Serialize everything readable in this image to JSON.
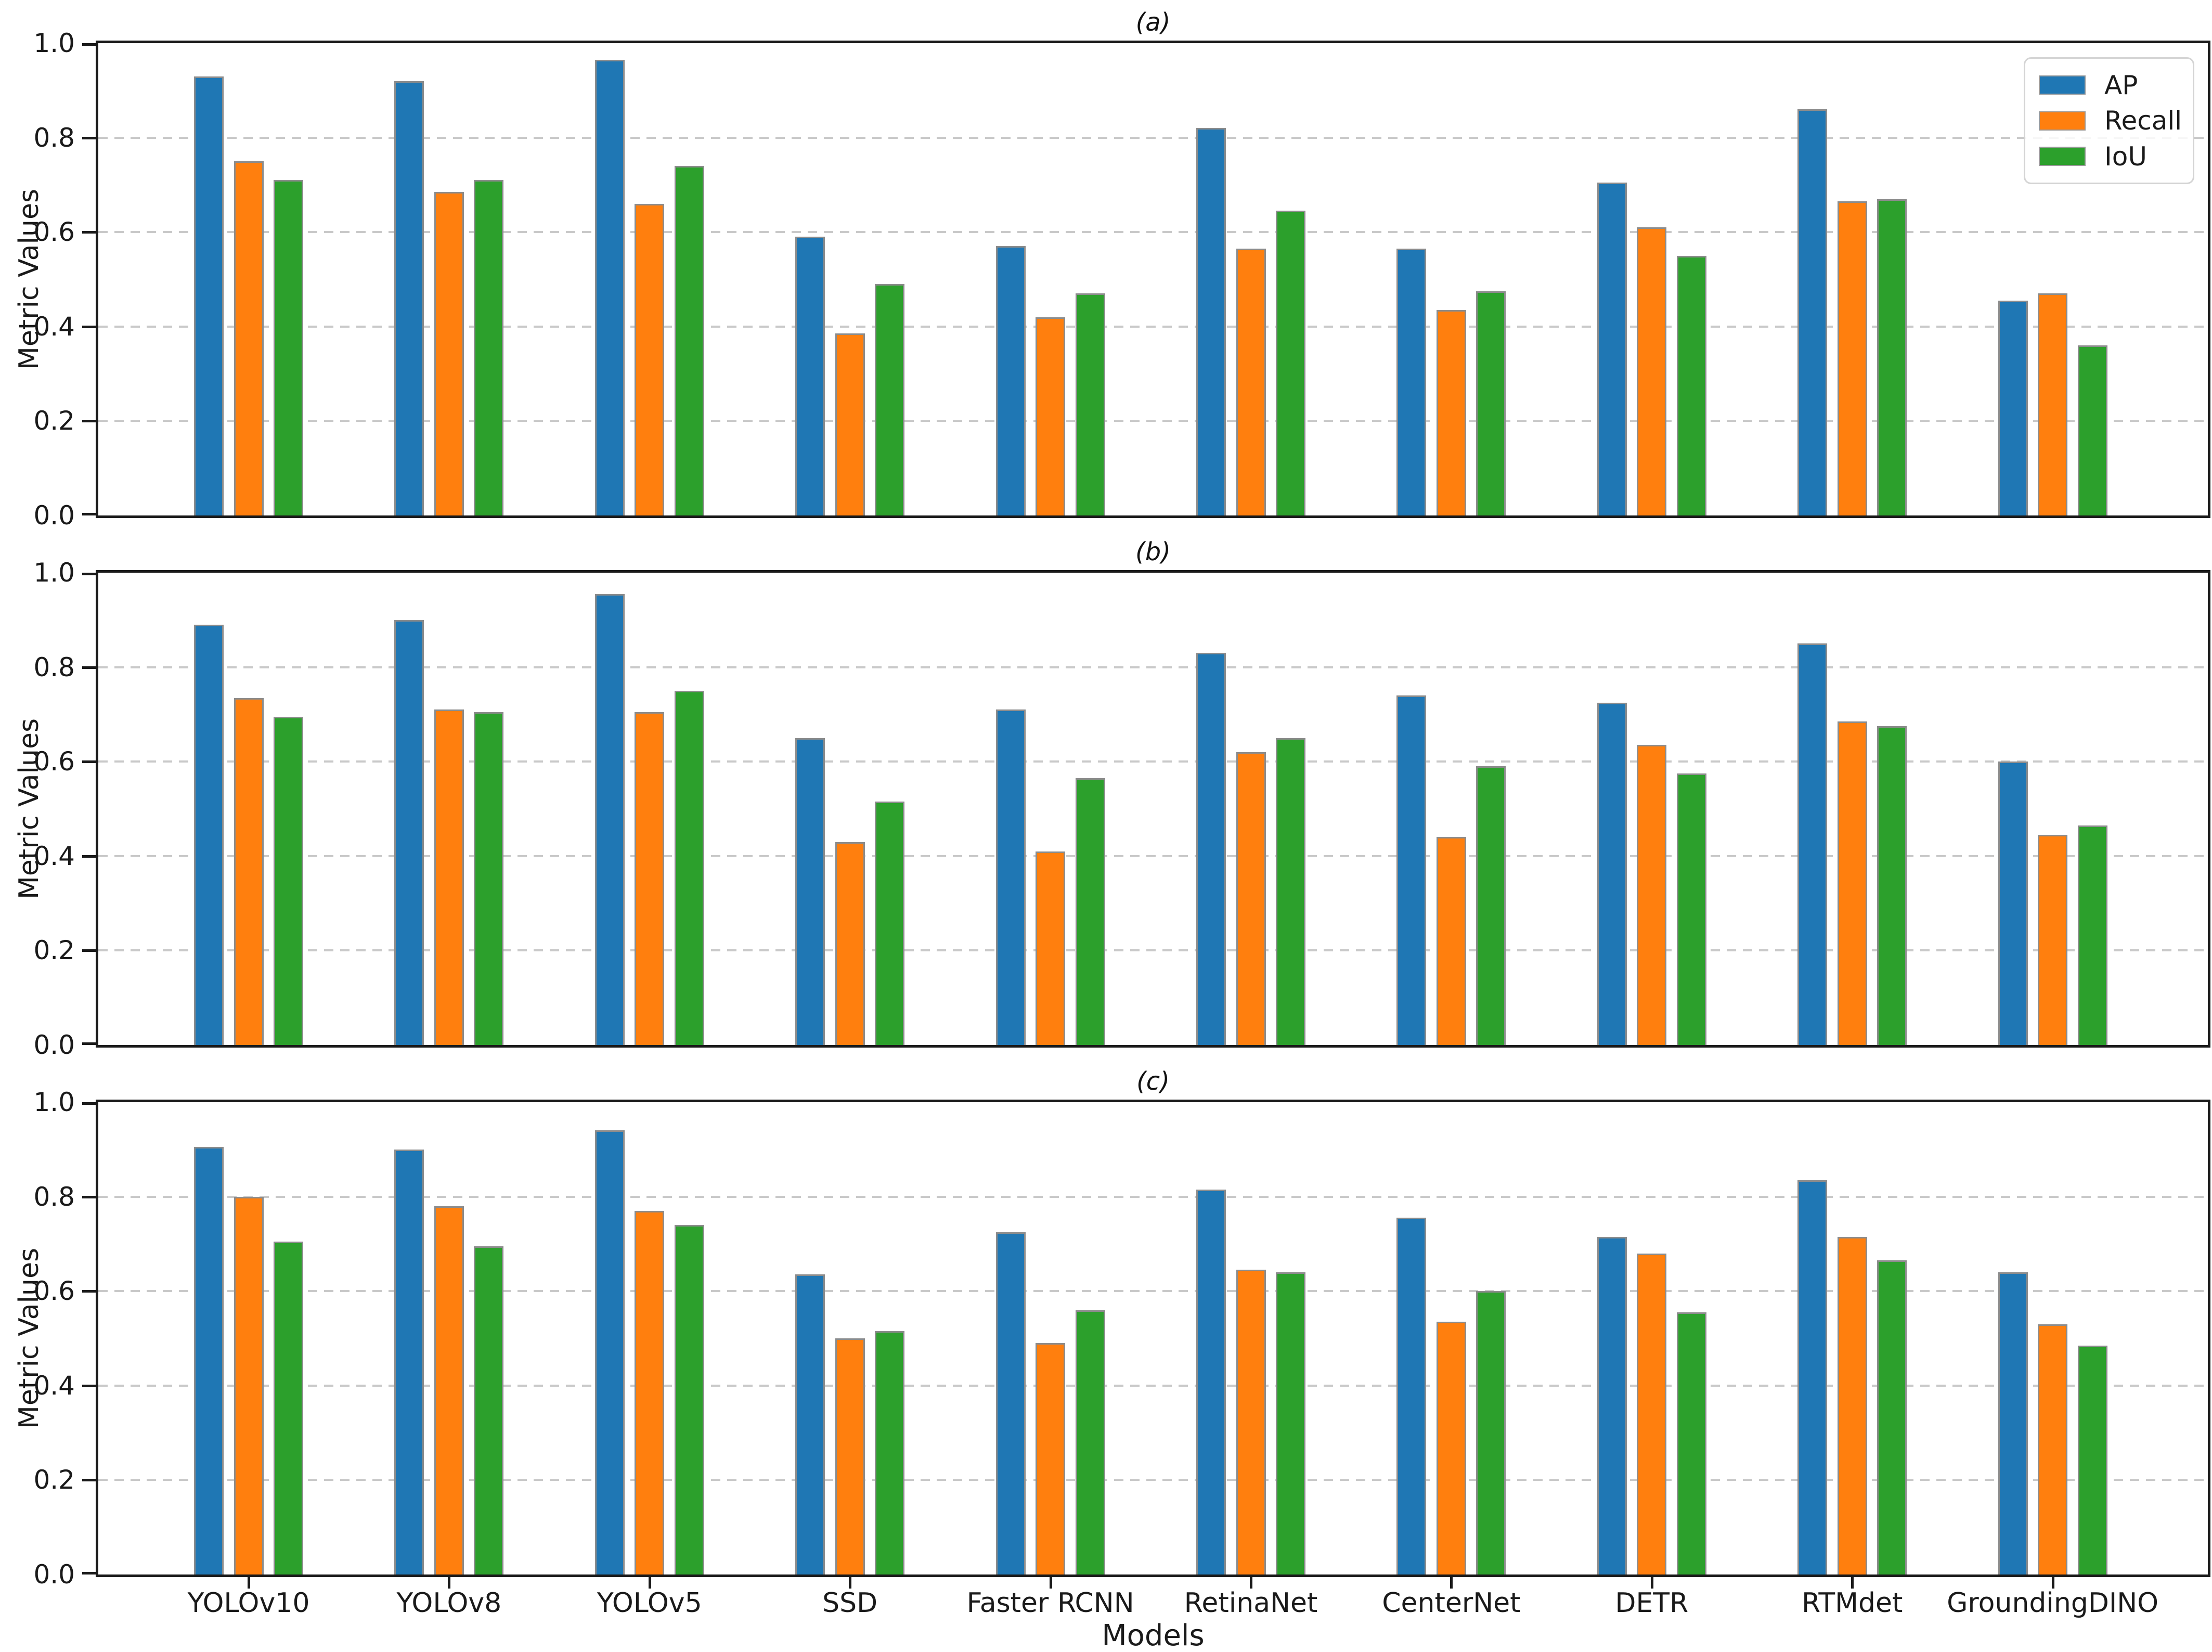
{
  "figure": {
    "xlabel": "Models",
    "ylabel": "Metric Values",
    "background": "#ffffff"
  },
  "axes": {
    "ytick_labels": [
      "1.0",
      "0.8",
      "0.6",
      "0.4",
      "0.2",
      "0.0"
    ],
    "ytick_values": [
      1.0,
      0.8,
      0.6,
      0.4,
      0.2,
      0.0
    ],
    "grid_values": [
      0.8,
      0.6,
      0.4,
      0.2
    ],
    "grid_color": "#c9c9c9",
    "spine_color": "#1a1a1a"
  },
  "legend": {
    "position": "upper right",
    "items": [
      {
        "label": "AP",
        "color": "#1f77b4"
      },
      {
        "label": "Recall",
        "color": "#ff7f0e"
      },
      {
        "label": "IoU",
        "color": "#2ca02c"
      }
    ]
  },
  "chart_data": [
    {
      "type": "bar",
      "title": "(a)",
      "xlabel": "",
      "ylabel": "Metric Values",
      "ylim": [
        0,
        1.0
      ],
      "grid": true,
      "legend_position": "upper right",
      "categories": [
        "YOLOv10",
        "YOLOv8",
        "YOLOv5",
        "SSD",
        "Faster RCNN",
        "RetinaNet",
        "CenterNet",
        "DETR",
        "RTMdet",
        "GroundingDINO"
      ],
      "series": [
        {
          "name": "AP",
          "color": "#1f77b4",
          "values": [
            0.93,
            0.92,
            0.965,
            0.59,
            0.57,
            0.82,
            0.565,
            0.705,
            0.86,
            0.455
          ]
        },
        {
          "name": "Recall",
          "color": "#ff7f0e",
          "values": [
            0.75,
            0.685,
            0.66,
            0.385,
            0.42,
            0.565,
            0.435,
            0.61,
            0.665,
            0.47
          ]
        },
        {
          "name": "IoU",
          "color": "#2ca02c",
          "values": [
            0.71,
            0.71,
            0.74,
            0.49,
            0.47,
            0.645,
            0.475,
            0.55,
            0.67,
            0.36
          ]
        }
      ]
    },
    {
      "type": "bar",
      "title": "(b)",
      "xlabel": "",
      "ylabel": "Metric Values",
      "ylim": [
        0,
        1.0
      ],
      "grid": true,
      "legend_position": "none",
      "categories": [
        "YOLOv10",
        "YOLOv8",
        "YOLOv5",
        "SSD",
        "Faster RCNN",
        "RetinaNet",
        "CenterNet",
        "DETR",
        "RTMdet",
        "GroundingDINO"
      ],
      "series": [
        {
          "name": "AP",
          "color": "#1f77b4",
          "values": [
            0.89,
            0.9,
            0.955,
            0.65,
            0.71,
            0.83,
            0.74,
            0.725,
            0.85,
            0.6
          ]
        },
        {
          "name": "Recall",
          "color": "#ff7f0e",
          "values": [
            0.735,
            0.71,
            0.705,
            0.43,
            0.41,
            0.62,
            0.44,
            0.635,
            0.685,
            0.445
          ]
        },
        {
          "name": "IoU",
          "color": "#2ca02c",
          "values": [
            0.695,
            0.705,
            0.75,
            0.515,
            0.565,
            0.65,
            0.59,
            0.575,
            0.675,
            0.465
          ]
        }
      ]
    },
    {
      "type": "bar",
      "title": "(c)",
      "xlabel": "Models",
      "ylabel": "Metric Values",
      "ylim": [
        0,
        1.0
      ],
      "grid": true,
      "legend_position": "none",
      "categories": [
        "YOLOv10",
        "YOLOv8",
        "YOLOv5",
        "SSD",
        "Faster RCNN",
        "RetinaNet",
        "CenterNet",
        "DETR",
        "RTMdet",
        "GroundingDINO"
      ],
      "series": [
        {
          "name": "AP",
          "color": "#1f77b4",
          "values": [
            0.905,
            0.9,
            0.94,
            0.635,
            0.725,
            0.815,
            0.755,
            0.715,
            0.835,
            0.64
          ]
        },
        {
          "name": "Recall",
          "color": "#ff7f0e",
          "values": [
            0.8,
            0.78,
            0.77,
            0.5,
            0.49,
            0.645,
            0.535,
            0.68,
            0.715,
            0.53
          ]
        },
        {
          "name": "IoU",
          "color": "#2ca02c",
          "values": [
            0.705,
            0.695,
            0.74,
            0.515,
            0.56,
            0.64,
            0.6,
            0.555,
            0.665,
            0.485
          ]
        }
      ]
    }
  ]
}
